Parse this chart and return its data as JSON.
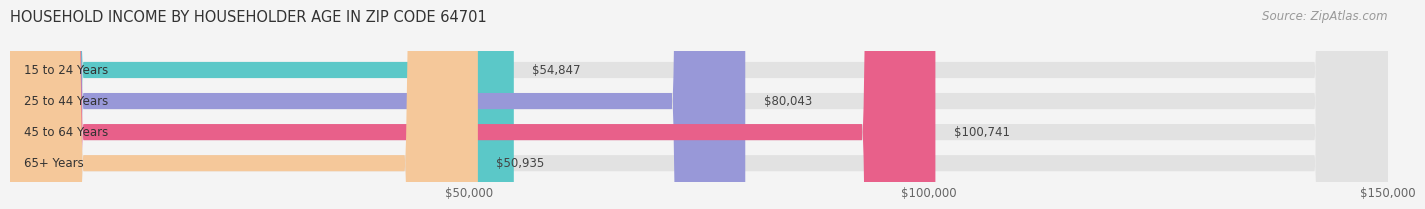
{
  "title": "HOUSEHOLD INCOME BY HOUSEHOLDER AGE IN ZIP CODE 64701",
  "source": "Source: ZipAtlas.com",
  "categories": [
    "15 to 24 Years",
    "25 to 44 Years",
    "45 to 64 Years",
    "65+ Years"
  ],
  "values": [
    54847,
    80043,
    100741,
    50935
  ],
  "bar_colors": [
    "#5bc8c8",
    "#9898d8",
    "#e8608a",
    "#f5c89a"
  ],
  "value_labels": [
    "$54,847",
    "$80,043",
    "$100,741",
    "$50,935"
  ],
  "xlim": [
    0,
    150000
  ],
  "xticks": [
    50000,
    100000,
    150000
  ],
  "xtick_labels": [
    "$50,000",
    "$100,000",
    "$150,000"
  ],
  "bg_color": "#f4f4f4",
  "bar_bg_color": "#e2e2e2",
  "title_fontsize": 10.5,
  "source_fontsize": 8.5,
  "label_fontsize": 8.5,
  "value_fontsize": 8.5,
  "tick_fontsize": 8.5,
  "bar_height": 0.52
}
